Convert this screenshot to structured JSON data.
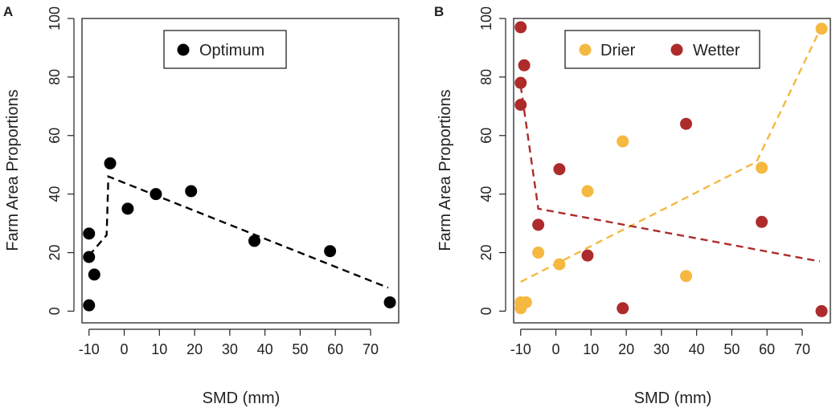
{
  "chart_data": [
    {
      "type": "scatter",
      "panel_label": "A",
      "xlabel": "SMD (mm)",
      "ylabel": "Farm Area Proportions",
      "xlim": [
        -12,
        78
      ],
      "ylim": [
        -4,
        100
      ],
      "xticks": [
        -10,
        0,
        10,
        20,
        30,
        40,
        50,
        60,
        70
      ],
      "xtick_labels": [
        "-10",
        "0",
        "10",
        "20",
        "30",
        "40",
        "50",
        "60",
        "70"
      ],
      "yticks": [
        0,
        20,
        40,
        60,
        80,
        100
      ],
      "ytick_labels": [
        "0",
        "20",
        "40",
        "60",
        "80",
        "100"
      ],
      "legend_position": "top-center",
      "series": [
        {
          "name": "Optimum",
          "color": "#000000",
          "points": [
            {
              "x": -10,
              "y": 26.5
            },
            {
              "x": -10,
              "y": 18.5
            },
            {
              "x": -10,
              "y": 2
            },
            {
              "x": -8.5,
              "y": 12.5
            },
            {
              "x": -4,
              "y": 50.5
            },
            {
              "x": 1,
              "y": 35
            },
            {
              "x": 9,
              "y": 40
            },
            {
              "x": 19,
              "y": 41
            },
            {
              "x": 37,
              "y": 24
            },
            {
              "x": 58.5,
              "y": 20.5
            },
            {
              "x": 75.5,
              "y": 3
            }
          ],
          "fit_line": [
            {
              "x": -10,
              "y": 19
            },
            {
              "x": -5,
              "y": 26
            },
            {
              "x": -4.5,
              "y": 46
            },
            {
              "x": 75,
              "y": 8
            }
          ]
        }
      ]
    },
    {
      "type": "scatter",
      "panel_label": "B",
      "xlabel": "SMD (mm)",
      "ylabel": "Farm Area Proportions",
      "xlim": [
        -12,
        78
      ],
      "ylim": [
        -4,
        100
      ],
      "xticks": [
        -10,
        0,
        10,
        20,
        30,
        40,
        50,
        60,
        70
      ],
      "xtick_labels": [
        "-10",
        "0",
        "10",
        "20",
        "30",
        "40",
        "50",
        "60",
        "70"
      ],
      "yticks": [
        0,
        20,
        40,
        60,
        80,
        100
      ],
      "ytick_labels": [
        "0",
        "20",
        "40",
        "60",
        "80",
        "100"
      ],
      "legend_position": "top-center",
      "series": [
        {
          "name": "Drier",
          "color": "#f5b841",
          "points": [
            {
              "x": -10,
              "y": 1
            },
            {
              "x": -10,
              "y": 3
            },
            {
              "x": -8.5,
              "y": 3
            },
            {
              "x": -5,
              "y": 20
            },
            {
              "x": 1,
              "y": 16
            },
            {
              "x": 9,
              "y": 41
            },
            {
              "x": 19,
              "y": 58
            },
            {
              "x": 37,
              "y": 12
            },
            {
              "x": 58.5,
              "y": 49
            },
            {
              "x": 75.5,
              "y": 96.5
            }
          ],
          "fit_line": [
            {
              "x": -10,
              "y": 10
            },
            {
              "x": 57,
              "y": 51
            },
            {
              "x": 75,
              "y": 96
            }
          ]
        },
        {
          "name": "Wetter",
          "color": "#ae2b2b",
          "points": [
            {
              "x": -10,
              "y": 97
            },
            {
              "x": -9,
              "y": 84
            },
            {
              "x": -10,
              "y": 78
            },
            {
              "x": -10,
              "y": 70.5
            },
            {
              "x": -5,
              "y": 29.5
            },
            {
              "x": 1,
              "y": 48.5
            },
            {
              "x": 9,
              "y": 19
            },
            {
              "x": 19,
              "y": 1
            },
            {
              "x": 37,
              "y": 64
            },
            {
              "x": 58.5,
              "y": 30.5
            },
            {
              "x": 75.5,
              "y": 0
            }
          ],
          "fit_line": [
            {
              "x": -10,
              "y": 77
            },
            {
              "x": -5,
              "y": 35
            },
            {
              "x": 75,
              "y": 17
            }
          ]
        }
      ]
    }
  ]
}
